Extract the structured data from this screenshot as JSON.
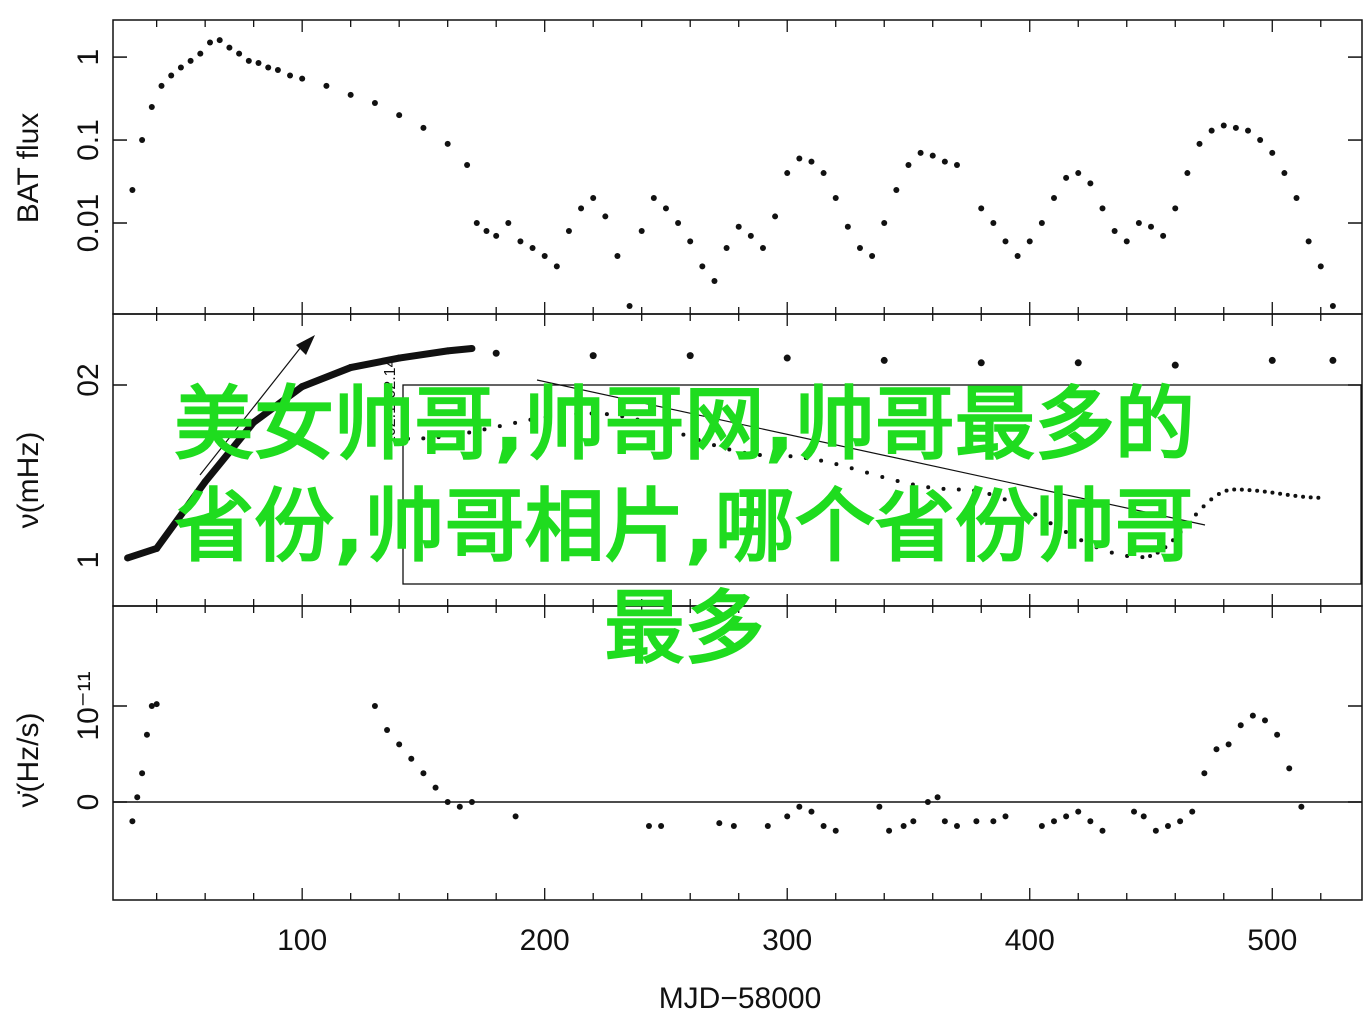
{
  "overlay_text": {
    "lines": [
      "美女帅哥,帅哥网,帅哥最多的",
      "省份,帅哥相片,哪个省份帅哥",
      "最多"
    ],
    "color": "#1fdc1f"
  },
  "chart_data": [
    {
      "type": "scatter",
      "panel": "top",
      "ylabel": "BAT flux",
      "yscale": "log",
      "ylim": [
        0.0008,
        2.8
      ],
      "yticks": [
        {
          "value": 0.01,
          "label": "0.01"
        },
        {
          "value": 0.1,
          "label": "0.1"
        },
        {
          "value": 1,
          "label": "1"
        }
      ],
      "xlim": [
        22,
        537
      ],
      "series": [
        {
          "x": [
            30,
            34,
            38,
            42,
            46,
            50,
            54,
            58,
            62,
            66,
            70,
            74,
            78,
            82,
            86,
            90,
            95,
            100,
            110,
            120,
            130,
            140,
            150,
            160,
            168,
            172,
            176,
            180,
            185,
            190,
            195,
            200,
            205,
            210,
            215,
            220,
            225,
            230,
            235,
            240,
            245,
            250,
            255,
            260,
            265,
            270,
            275,
            280,
            285,
            290,
            295,
            300,
            305,
            310,
            315,
            320,
            325,
            330,
            335,
            340,
            345,
            350,
            355,
            360,
            365,
            370,
            380,
            385,
            390,
            395,
            400,
            405,
            410,
            415,
            420,
            425,
            430,
            435,
            440,
            445,
            450,
            455,
            460,
            465,
            470,
            475,
            480,
            485,
            490,
            495,
            500,
            505,
            510,
            515,
            520,
            525
          ],
          "y": [
            0.025,
            0.1,
            0.25,
            0.45,
            0.6,
            0.75,
            0.9,
            1.1,
            1.5,
            1.6,
            1.3,
            1.1,
            0.9,
            0.85,
            0.75,
            0.7,
            0.6,
            0.55,
            0.45,
            0.35,
            0.28,
            0.2,
            0.14,
            0.09,
            0.05,
            0.01,
            0.008,
            0.007,
            0.01,
            0.006,
            0.005,
            0.004,
            0.003,
            0.008,
            0.015,
            0.02,
            0.012,
            0.004,
            0.001,
            0.008,
            0.02,
            0.015,
            0.01,
            0.006,
            0.003,
            0.002,
            0.005,
            0.009,
            0.007,
            0.005,
            0.012,
            0.04,
            0.06,
            0.055,
            0.04,
            0.02,
            0.009,
            0.005,
            0.004,
            0.01,
            0.025,
            0.05,
            0.07,
            0.065,
            0.055,
            0.05,
            0.015,
            0.01,
            0.006,
            0.004,
            0.006,
            0.01,
            0.02,
            0.035,
            0.04,
            0.03,
            0.015,
            0.008,
            0.006,
            0.01,
            0.009,
            0.007,
            0.015,
            0.04,
            0.09,
            0.13,
            0.15,
            0.14,
            0.13,
            0.1,
            0.07,
            0.04,
            0.02,
            0.006,
            0.003,
            0.001
          ]
        }
      ]
    },
    {
      "type": "line",
      "panel": "middle",
      "ylabel": "ν(mHz)",
      "ylim": [
        0,
        1
      ],
      "ytick_label_fragments": [
        "02",
        "1"
      ],
      "xlim": [
        22,
        537
      ],
      "series": [
        {
          "x": [
            28,
            40,
            60,
            80,
            100,
            120,
            140,
            160,
            170
          ],
          "y": [
            0.08,
            0.12,
            0.4,
            0.65,
            0.8,
            0.88,
            0.92,
            0.95,
            0.96
          ]
        },
        {
          "x": [
            180,
            220,
            260,
            300,
            340,
            380,
            420,
            460,
            500,
            525
          ],
          "y": [
            0.94,
            0.93,
            0.93,
            0.92,
            0.91,
            0.9,
            0.9,
            0.89,
            0.91,
            0.91
          ]
        }
      ],
      "inset": {
        "tick_labels": [
          "102.14",
          "102.1"
        ],
        "series": [
          {
            "x": [
              0,
              0.2,
              0.4,
              0.6,
              0.8,
              0.9,
              1.0
            ],
            "y": [
              0.8,
              0.95,
              0.7,
              0.5,
              0.1,
              0.5,
              0.45
            ]
          }
        ]
      }
    },
    {
      "type": "scatter",
      "panel": "bottom",
      "ylabel": "ν̇(Hz/s)",
      "ylim": [
        -1.0,
        1.02
      ],
      "yticks": [
        {
          "value": 0,
          "label": "0"
        },
        {
          "value": 1,
          "label": "10⁻¹¹"
        }
      ],
      "xlim": [
        22,
        537
      ],
      "xlabel": "MJD−58000",
      "xticks": [
        100,
        200,
        300,
        400,
        500
      ],
      "zero_line": true,
      "series": [
        {
          "x": [
            30,
            32,
            34,
            36,
            38,
            40,
            130,
            135,
            140,
            145,
            150,
            155,
            160,
            165,
            170,
            188,
            243,
            248,
            272,
            278,
            292,
            300,
            305,
            310,
            315,
            320,
            338,
            342,
            348,
            352,
            358,
            362,
            365,
            370,
            378,
            385,
            390,
            405,
            410,
            415,
            420,
            425,
            430,
            443,
            447,
            452,
            457,
            462,
            467,
            472,
            477,
            482,
            487,
            492,
            497,
            502,
            507,
            512
          ],
          "y": [
            -0.2,
            0.05,
            0.3,
            0.7,
            1.0,
            1.02,
            1.0,
            0.75,
            0.6,
            0.45,
            0.3,
            0.15,
            0.0,
            -0.05,
            0.0,
            -0.15,
            -0.25,
            -0.25,
            -0.22,
            -0.25,
            -0.25,
            -0.15,
            -0.05,
            -0.1,
            -0.25,
            -0.3,
            -0.05,
            -0.3,
            -0.25,
            -0.2,
            0.0,
            0.05,
            -0.2,
            -0.25,
            -0.2,
            -0.2,
            -0.15,
            -0.25,
            -0.2,
            -0.15,
            -0.1,
            -0.2,
            -0.3,
            -0.1,
            -0.15,
            -0.3,
            -0.25,
            -0.2,
            -0.1,
            0.3,
            0.55,
            0.6,
            0.8,
            0.9,
            0.85,
            0.7,
            0.35,
            -0.05
          ]
        }
      ]
    }
  ]
}
